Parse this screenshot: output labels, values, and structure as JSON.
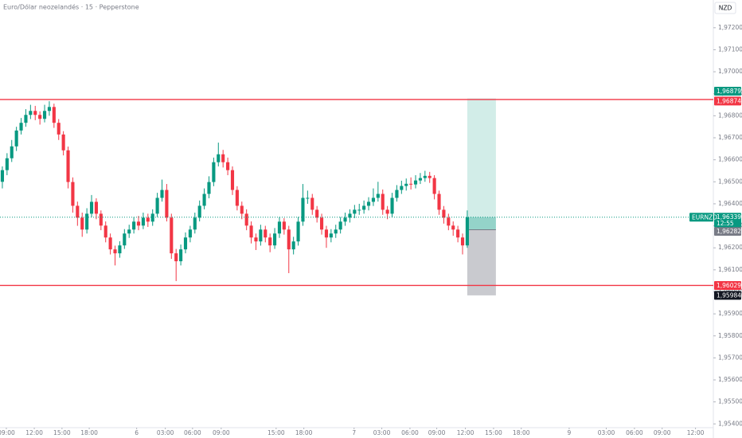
{
  "chart_data": {
    "type": "candlestick",
    "title": "Euro/Dólar neozelandés · 15 · Pepperstone",
    "currency": "NZD",
    "up_color": "#089981",
    "down_color": "#f23645",
    "open": [
      1.965,
      1.96553,
      1.96607,
      1.96661,
      1.96733,
      1.96768,
      1.96804,
      1.96822,
      1.96804,
      1.96786,
      1.96822,
      1.9684,
      1.96768,
      1.96715,
      1.96643,
      1.96499,
      1.96391,
      1.96337,
      1.96283,
      1.96355,
      1.96409,
      1.96355,
      1.96301,
      1.96247,
      1.96193,
      1.96175,
      1.96211,
      1.96265,
      1.96283,
      1.96319,
      1.96301,
      1.96337,
      1.96319,
      1.96355,
      1.96427,
      1.96463,
      1.96337,
      1.96175,
      1.96139,
      1.96193,
      1.96247,
      1.96283,
      1.96337,
      1.96391,
      1.96445,
      1.96499,
      1.96589,
      1.96625,
      1.96589,
      1.96553,
      1.96463,
      1.96391,
      1.96355,
      1.96301,
      1.96247,
      1.96229,
      1.96283,
      1.96247,
      1.96211,
      1.96265,
      1.96319,
      1.96283,
      1.96193,
      1.96229,
      1.96319,
      1.96427,
      1.96427,
      1.96373,
      1.96337,
      1.96283,
      1.96247,
      1.96265,
      1.96283,
      1.96319,
      1.96337,
      1.96355,
      1.96373,
      1.96373,
      1.96391,
      1.96409,
      1.96427,
      1.96445,
      1.96373,
      1.96355,
      1.96427,
      1.96463,
      1.96481,
      1.96491,
      1.96488,
      1.96506,
      1.96517,
      1.96527,
      1.96517,
      1.96445,
      1.96373,
      1.96337,
      1.96301,
      1.96283,
      1.96247,
      1.96211
    ],
    "high": [
      1.9657,
      1.9663,
      1.9669,
      1.9675,
      1.9679,
      1.9683,
      1.9685,
      1.96845,
      1.9682,
      1.9685,
      1.96866,
      1.96855,
      1.96785,
      1.9673,
      1.9666,
      1.9652,
      1.9641,
      1.9636,
      1.9638,
      1.9644,
      1.96425,
      1.9637,
      1.9632,
      1.96265,
      1.9621,
      1.9623,
      1.96285,
      1.96305,
      1.9634,
      1.96345,
      1.9636,
      1.96355,
      1.96375,
      1.9645,
      1.9651,
      1.9649,
      1.96355,
      1.96195,
      1.96215,
      1.9627,
      1.963,
      1.9636,
      1.96415,
      1.9647,
      1.96525,
      1.9661,
      1.96678,
      1.96645,
      1.9661,
      1.9657,
      1.9648,
      1.9641,
      1.96375,
      1.9632,
      1.96265,
      1.96305,
      1.963,
      1.96265,
      1.9629,
      1.9634,
      1.96335,
      1.963,
      1.9625,
      1.9634,
      1.9649,
      1.9646,
      1.96445,
      1.9639,
      1.96355,
      1.963,
      1.96285,
      1.96305,
      1.9634,
      1.9636,
      1.96375,
      1.96395,
      1.964,
      1.96415,
      1.9643,
      1.9647,
      1.965,
      1.96465,
      1.9639,
      1.9645,
      1.96485,
      1.96505,
      1.96515,
      1.9652,
      1.9653,
      1.9654,
      1.9655,
      1.96545,
      1.9653,
      1.9646,
      1.9639,
      1.96355,
      1.9632,
      1.963,
      1.96265,
      1.9637
    ],
    "low": [
      1.9647,
      1.9653,
      1.9659,
      1.9664,
      1.96715,
      1.9675,
      1.96785,
      1.9678,
      1.9676,
      1.9677,
      1.968,
      1.96745,
      1.9669,
      1.9662,
      1.9647,
      1.9636,
      1.963,
      1.9625,
      1.96265,
      1.9634,
      1.9633,
      1.9628,
      1.96225,
      1.9617,
      1.9612,
      1.96155,
      1.96195,
      1.96245,
      1.96265,
      1.9628,
      1.96285,
      1.96295,
      1.963,
      1.9634,
      1.9641,
      1.9632,
      1.9615,
      1.96049,
      1.9612,
      1.96175,
      1.96225,
      1.96265,
      1.9632,
      1.96375,
      1.96425,
      1.9648,
      1.9657,
      1.96565,
      1.9653,
      1.9644,
      1.9637,
      1.9633,
      1.9628,
      1.9622,
      1.9619,
      1.9621,
      1.96225,
      1.9618,
      1.96195,
      1.96245,
      1.9626,
      1.96085,
      1.9617,
      1.9621,
      1.963,
      1.964,
      1.9635,
      1.96315,
      1.9626,
      1.962,
      1.96225,
      1.96245,
      1.96265,
      1.963,
      1.96315,
      1.96335,
      1.9635,
      1.96355,
      1.9637,
      1.9639,
      1.9641,
      1.9635,
      1.9633,
      1.9634,
      1.9641,
      1.96445,
      1.9646,
      1.96465,
      1.9647,
      1.9649,
      1.965,
      1.96495,
      1.9642,
      1.9635,
      1.9631,
      1.9628,
      1.96255,
      1.96225,
      1.9617,
      1.962
    ],
    "close": [
      1.96553,
      1.96607,
      1.96661,
      1.96733,
      1.96768,
      1.96804,
      1.96822,
      1.96804,
      1.96786,
      1.96822,
      1.9684,
      1.96768,
      1.96715,
      1.96643,
      1.96499,
      1.96391,
      1.96337,
      1.96283,
      1.96355,
      1.96409,
      1.96355,
      1.96301,
      1.96247,
      1.96193,
      1.96175,
      1.96211,
      1.96265,
      1.96283,
      1.96319,
      1.96301,
      1.96337,
      1.96319,
      1.96355,
      1.96427,
      1.96463,
      1.96337,
      1.96175,
      1.96139,
      1.96193,
      1.96247,
      1.96283,
      1.96337,
      1.96391,
      1.96445,
      1.96499,
      1.96589,
      1.96625,
      1.96589,
      1.96553,
      1.96463,
      1.96391,
      1.96355,
      1.96301,
      1.96247,
      1.96229,
      1.96283,
      1.96247,
      1.96211,
      1.96265,
      1.96319,
      1.96283,
      1.96193,
      1.96229,
      1.96319,
      1.96427,
      1.96427,
      1.96373,
      1.96337,
      1.96283,
      1.96247,
      1.96265,
      1.96283,
      1.96319,
      1.96337,
      1.96355,
      1.96373,
      1.96373,
      1.96391,
      1.96409,
      1.96427,
      1.96445,
      1.96373,
      1.96355,
      1.96427,
      1.96463,
      1.96481,
      1.96491,
      1.96488,
      1.96506,
      1.96517,
      1.96527,
      1.96517,
      1.96445,
      1.96373,
      1.96337,
      1.96301,
      1.96283,
      1.96247,
      1.96211,
      1.96339
    ],
    "xlim": [
      -0.5,
      151.4
    ],
    "xticks": [
      {
        "value": 0.85,
        "label": "09:00"
      },
      {
        "value": 6.8,
        "label": "12:00"
      },
      {
        "value": 12.7,
        "label": "15:00"
      },
      {
        "value": 18.5,
        "label": "18:00"
      },
      {
        "value": 28.6,
        "label": "6"
      },
      {
        "value": 34.7,
        "label": "03:00"
      },
      {
        "value": 40.5,
        "label": "06:00"
      },
      {
        "value": 46.6,
        "label": "09:00"
      },
      {
        "value": 58.3,
        "label": "15:00"
      },
      {
        "value": 64.2,
        "label": "18:00"
      },
      {
        "value": 74.9,
        "label": "7"
      },
      {
        "value": 80.8,
        "label": "03:00"
      },
      {
        "value": 86.8,
        "label": "06:00"
      },
      {
        "value": 92.5,
        "label": "09:00"
      },
      {
        "value": 98.6,
        "label": "12:00"
      },
      {
        "value": 104.6,
        "label": "15:00"
      },
      {
        "value": 110.5,
        "label": "18:00"
      },
      {
        "value": 120.7,
        "label": "9"
      },
      {
        "value": 128.6,
        "label": "03:00"
      },
      {
        "value": 134.6,
        "label": "06:00"
      },
      {
        "value": 140.5,
        "label": "09:00"
      },
      {
        "value": 147.6,
        "label": "12:00"
      }
    ],
    "ylim": [
      1.95383,
      1.97326
    ],
    "yticks": [
      {
        "value": 1.972,
        "label": "1,97200"
      },
      {
        "value": 1.971,
        "label": "1,97100"
      },
      {
        "value": 1.97,
        "label": "1,97000"
      },
      {
        "value": 1.969,
        "label": "1,96900"
      },
      {
        "value": 1.968,
        "label": "1,96800"
      },
      {
        "value": 1.967,
        "label": "1,96700"
      },
      {
        "value": 1.966,
        "label": "1,96600"
      },
      {
        "value": 1.965,
        "label": "1,96500"
      },
      {
        "value": 1.964,
        "label": "1,96400"
      },
      {
        "value": 1.963,
        "label": "1,96300"
      },
      {
        "value": 1.962,
        "label": "1,96200"
      },
      {
        "value": 1.961,
        "label": "1,96100"
      },
      {
        "value": 1.96,
        "label": "1,96000"
      },
      {
        "value": 1.959,
        "label": "1,95900"
      },
      {
        "value": 1.958,
        "label": "1,95800"
      },
      {
        "value": 1.957,
        "label": "1,95700"
      },
      {
        "value": 1.956,
        "label": "1,95600"
      },
      {
        "value": 1.955,
        "label": "1,95500"
      },
      {
        "value": 1.954,
        "label": "1,95400"
      }
    ],
    "hlines": [
      {
        "value": 1.96874,
        "label": "1,96874",
        "color": "#f23645"
      },
      {
        "value": 1.96029,
        "label": "1,96029",
        "color": "#f23645"
      }
    ],
    "position": {
      "x_start": 99,
      "x_end": 105.1,
      "target": {
        "value": 1.96879,
        "label": "1,96879",
        "color": "#089981"
      },
      "entry": {
        "value": 1.96282,
        "label": "1,96282",
        "color": "#787b86"
      },
      "stop": {
        "value": 1.95984,
        "label": "1,95984",
        "color": "#131722"
      }
    },
    "last_price": {
      "symbol": "EURNZD",
      "value": 1.96339,
      "label": "1,96339",
      "countdown": "12:55",
      "color": "#089981"
    }
  }
}
